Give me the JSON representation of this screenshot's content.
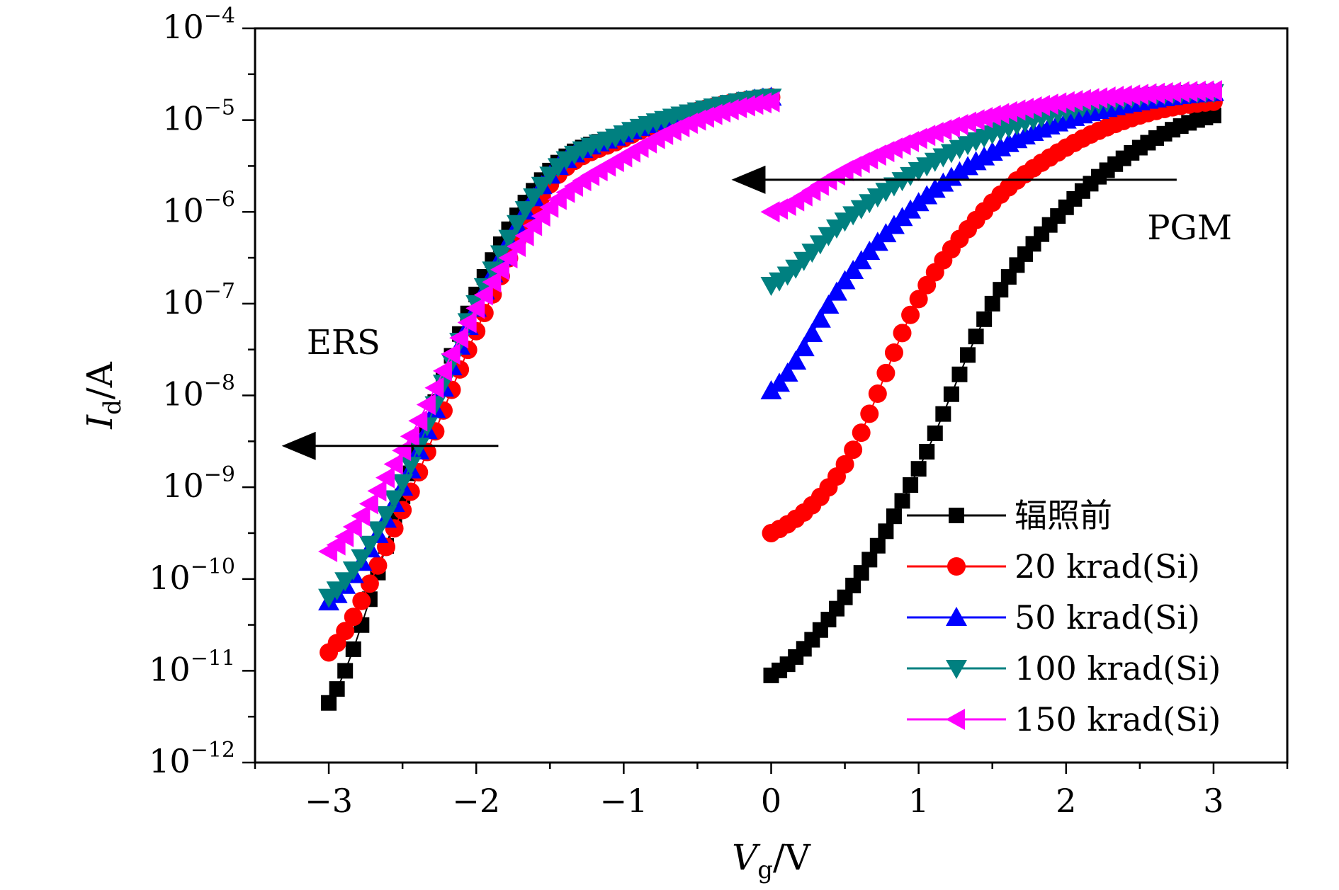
{
  "chart_data": {
    "type": "scatter",
    "title": "",
    "xlabel": {
      "main": "V",
      "sub": "g",
      "unit": "/V"
    },
    "ylabel": {
      "main": "I",
      "sub": "d",
      "unit": "/A"
    },
    "xlim": [
      -3.5,
      3.5
    ],
    "ylim_log10": [
      -12,
      -4
    ],
    "y_scale": "log",
    "x_ticks": [
      {
        "value": -3,
        "label": "−3"
      },
      {
        "value": -2,
        "label": "−2"
      },
      {
        "value": -1,
        "label": "−1"
      },
      {
        "value": 0,
        "label": "0"
      },
      {
        "value": 1,
        "label": "1"
      },
      {
        "value": 2,
        "label": "2"
      },
      {
        "value": 3,
        "label": "3"
      }
    ],
    "y_ticks": [
      {
        "exp": -4,
        "base": "10",
        "sup": "−4"
      },
      {
        "exp": -5,
        "base": "10",
        "sup": "−5"
      },
      {
        "exp": -6,
        "base": "10",
        "sup": "−6"
      },
      {
        "exp": -7,
        "base": "10",
        "sup": "−7"
      },
      {
        "exp": -8,
        "base": "10",
        "sup": "−8"
      },
      {
        "exp": -9,
        "base": "10",
        "sup": "−9"
      },
      {
        "exp": -10,
        "base": "10",
        "sup": "−10"
      },
      {
        "exp": -11,
        "base": "10",
        "sup": "−11"
      },
      {
        "exp": -12,
        "base": "10",
        "sup": "−12"
      }
    ],
    "legend_position": "bottom-right",
    "series": [
      {
        "name": "辐照前",
        "color": "#000000",
        "marker": "square",
        "ers": [
          [
            -3.0,
            -11.35
          ],
          [
            -2.5,
            -9.1
          ],
          [
            -2.0,
            -6.9
          ],
          [
            -1.5,
            -5.55
          ],
          [
            -1.0,
            -5.15
          ],
          [
            -0.5,
            -4.9
          ],
          [
            0.0,
            -4.75
          ]
        ],
        "pgm": [
          [
            0.0,
            -11.05
          ],
          [
            0.5,
            -10.2
          ],
          [
            1.0,
            -8.8
          ],
          [
            1.5,
            -7.0
          ],
          [
            2.0,
            -5.95
          ],
          [
            2.5,
            -5.3
          ],
          [
            3.0,
            -4.95
          ]
        ]
      },
      {
        "name": "20 krad(Si)",
        "color": "#ff0000",
        "marker": "circle",
        "ers": [
          [
            -3.0,
            -10.8
          ],
          [
            -2.5,
            -9.25
          ],
          [
            -2.0,
            -7.3
          ],
          [
            -1.5,
            -5.7
          ],
          [
            -1.0,
            -5.2
          ],
          [
            -0.5,
            -4.9
          ],
          [
            0.0,
            -4.75
          ]
        ],
        "pgm": [
          [
            0.0,
            -9.5
          ],
          [
            0.5,
            -8.75
          ],
          [
            1.0,
            -6.95
          ],
          [
            1.5,
            -5.9
          ],
          [
            2.0,
            -5.3
          ],
          [
            2.5,
            -4.95
          ],
          [
            3.0,
            -4.8
          ]
        ]
      },
      {
        "name": "50 krad(Si)",
        "color": "#0000ff",
        "marker": "triangle-up",
        "ers": [
          [
            -3.0,
            -10.25
          ],
          [
            -2.5,
            -9.0
          ],
          [
            -2.0,
            -7.05
          ],
          [
            -1.5,
            -5.6
          ],
          [
            -1.0,
            -5.15
          ],
          [
            -0.5,
            -4.9
          ],
          [
            0.0,
            -4.75
          ]
        ],
        "pgm": [
          [
            0.0,
            -7.95
          ],
          [
            0.5,
            -6.75
          ],
          [
            1.0,
            -5.9
          ],
          [
            1.5,
            -5.35
          ],
          [
            2.0,
            -5.0
          ],
          [
            2.5,
            -4.8
          ],
          [
            3.0,
            -4.7
          ]
        ]
      },
      {
        "name": "100 krad(Si)",
        "color": "#008080",
        "marker": "triangle-down",
        "ers": [
          [
            -3.0,
            -10.2
          ],
          [
            -2.5,
            -8.95
          ],
          [
            -2.0,
            -7.0
          ],
          [
            -1.5,
            -5.6
          ],
          [
            -1.0,
            -5.15
          ],
          [
            -0.5,
            -4.9
          ],
          [
            0.0,
            -4.75
          ]
        ],
        "pgm": [
          [
            0.0,
            -6.8
          ],
          [
            0.5,
            -6.1
          ],
          [
            1.0,
            -5.55
          ],
          [
            1.5,
            -5.15
          ],
          [
            2.0,
            -4.9
          ],
          [
            2.5,
            -4.75
          ],
          [
            3.0,
            -4.7
          ]
        ]
      },
      {
        "name": "150 krad(Si)",
        "color": "#ff00ff",
        "marker": "triangle-left",
        "ers": [
          [
            -3.0,
            -9.7
          ],
          [
            -2.5,
            -8.6
          ],
          [
            -2.0,
            -7.05
          ],
          [
            -1.5,
            -5.95
          ],
          [
            -1.0,
            -5.4
          ],
          [
            -0.5,
            -5.0
          ],
          [
            0.0,
            -4.8
          ]
        ],
        "pgm": [
          [
            0.0,
            -6.0
          ],
          [
            0.5,
            -5.55
          ],
          [
            1.0,
            -5.2
          ],
          [
            1.5,
            -4.95
          ],
          [
            2.0,
            -4.8
          ],
          [
            2.5,
            -4.72
          ],
          [
            3.0,
            -4.68
          ]
        ]
      }
    ],
    "annotations": [
      {
        "text": "PGM",
        "x": 2.55,
        "log10y": -6.3
      },
      {
        "text": "ERS",
        "x": -3.15,
        "log10y": -7.55
      }
    ],
    "arrows": [
      {
        "from": [
          2.75,
          -5.65
        ],
        "to": [
          -0.25,
          -5.65
        ],
        "color": "#000000"
      },
      {
        "from": [
          -1.85,
          -8.55
        ],
        "to": [
          -3.3,
          -8.55
        ],
        "color": "#000000"
      }
    ]
  }
}
